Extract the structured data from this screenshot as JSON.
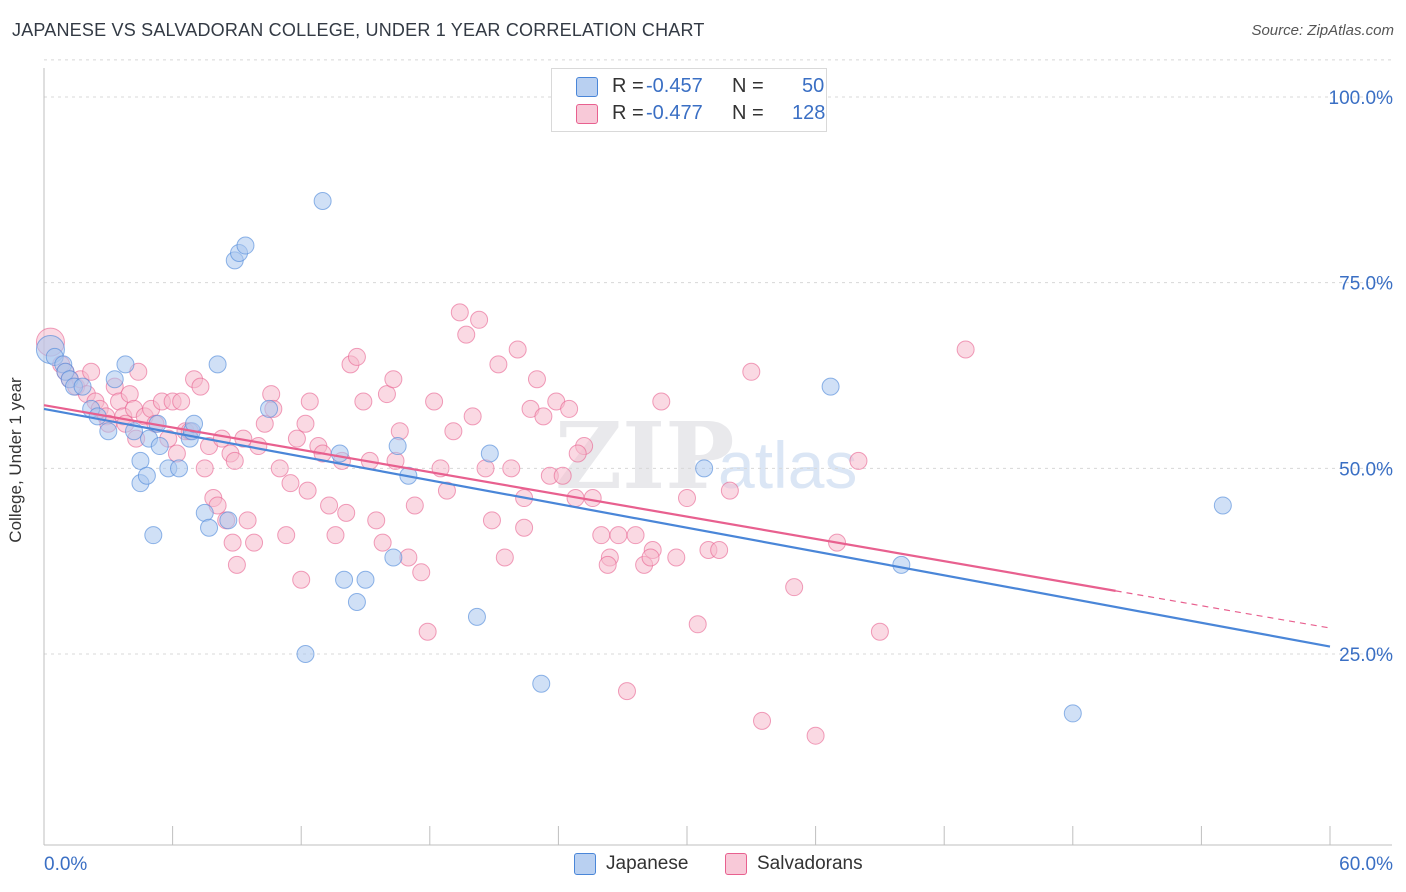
{
  "title": "JAPANESE VS SALVADORAN COLLEGE, UNDER 1 YEAR CORRELATION CHART",
  "source": "Source: ZipAtlas.com",
  "watermark": {
    "zip": "ZIP",
    "atlas": "atlas"
  },
  "colors": {
    "blue": "#4a86d8",
    "blue_fill": "#a9c6ef",
    "pink": "#e8608f",
    "pink_fill": "#f5b9cc",
    "tick_label": "#3a6fc4",
    "grid": "#d8d8d8"
  },
  "legend": {
    "rows": [
      {
        "r_label": "R =",
        "r_value": "-0.457",
        "n_label": "N =",
        "n_value": "50"
      },
      {
        "r_label": "R =",
        "r_value": "-0.477",
        "n_label": "N =",
        "n_value": "128"
      }
    ]
  },
  "bottom_legend": {
    "japanese": "Japanese",
    "salvadorans": "Salvadorans"
  },
  "chart_data": {
    "type": "scatter",
    "title": "JAPANESE VS SALVADORAN COLLEGE, UNDER 1 YEAR CORRELATION CHART",
    "xlabel": "",
    "ylabel": "College, Under 1 year",
    "xlim": [
      0,
      60
    ],
    "ylim": [
      0,
      105
    ],
    "x_tick_labels": {
      "left": "0.0%",
      "right": "60.0%"
    },
    "y_ticks": [
      100,
      75,
      50,
      25
    ],
    "y_tick_labels": [
      "100.0%",
      "75.0%",
      "50.0%",
      "25.0%"
    ],
    "grid": true,
    "series": [
      {
        "name": "Japanese",
        "trend": {
          "x0": 0,
          "y0": 58.0,
          "x1": 60,
          "y1": 26.0
        },
        "points": [
          [
            0.3,
            66
          ],
          [
            0.5,
            65
          ],
          [
            0.9,
            64
          ],
          [
            1.0,
            63
          ],
          [
            1.2,
            62
          ],
          [
            1.4,
            61
          ],
          [
            1.8,
            61
          ],
          [
            2.2,
            58
          ],
          [
            2.5,
            57
          ],
          [
            3.0,
            55
          ],
          [
            3.3,
            62
          ],
          [
            3.8,
            64
          ],
          [
            4.2,
            55
          ],
          [
            4.5,
            51
          ],
          [
            4.5,
            48
          ],
          [
            4.8,
            49
          ],
          [
            4.9,
            54
          ],
          [
            5.1,
            41
          ],
          [
            5.3,
            56
          ],
          [
            5.4,
            53
          ],
          [
            5.8,
            50
          ],
          [
            6.3,
            50
          ],
          [
            6.8,
            54
          ],
          [
            6.9,
            55
          ],
          [
            7.0,
            56
          ],
          [
            7.5,
            44
          ],
          [
            7.7,
            42
          ],
          [
            8.1,
            64
          ],
          [
            8.6,
            43
          ],
          [
            8.9,
            78
          ],
          [
            9.1,
            79
          ],
          [
            9.4,
            80
          ],
          [
            10.5,
            58
          ],
          [
            12.2,
            25
          ],
          [
            13.0,
            86
          ],
          [
            13.8,
            52
          ],
          [
            14.0,
            35
          ],
          [
            14.6,
            32
          ],
          [
            15.0,
            35
          ],
          [
            16.3,
            38
          ],
          [
            16.5,
            53
          ],
          [
            17.0,
            49
          ],
          [
            20.2,
            30
          ],
          [
            20.8,
            52
          ],
          [
            23.2,
            21
          ],
          [
            30.8,
            50
          ],
          [
            36.7,
            61
          ],
          [
            40.0,
            37
          ],
          [
            48.0,
            17
          ],
          [
            55.0,
            45
          ]
        ]
      },
      {
        "name": "Salvadorans",
        "trend": {
          "x0": 0,
          "y0": 58.5,
          "x1": 50,
          "y1": 33.5,
          "dash_x1": 60,
          "dash_y1": 28.5
        },
        "points": [
          [
            0.3,
            67
          ],
          [
            0.8,
            64
          ],
          [
            1.0,
            63
          ],
          [
            1.2,
            62
          ],
          [
            1.5,
            61
          ],
          [
            1.7,
            62
          ],
          [
            2.0,
            60
          ],
          [
            2.2,
            63
          ],
          [
            2.4,
            59
          ],
          [
            2.6,
            58
          ],
          [
            2.9,
            57
          ],
          [
            3.0,
            56
          ],
          [
            3.3,
            61
          ],
          [
            3.5,
            59
          ],
          [
            3.7,
            57
          ],
          [
            3.8,
            56
          ],
          [
            4.0,
            60
          ],
          [
            4.2,
            58
          ],
          [
            4.3,
            54
          ],
          [
            4.4,
            63
          ],
          [
            4.7,
            57
          ],
          [
            5.0,
            58
          ],
          [
            5.2,
            56
          ],
          [
            5.5,
            59
          ],
          [
            5.8,
            54
          ],
          [
            6.0,
            59
          ],
          [
            6.2,
            52
          ],
          [
            6.4,
            59
          ],
          [
            6.6,
            55
          ],
          [
            6.8,
            55
          ],
          [
            7.0,
            62
          ],
          [
            7.3,
            61
          ],
          [
            7.5,
            50
          ],
          [
            7.7,
            53
          ],
          [
            7.9,
            46
          ],
          [
            8.1,
            45
          ],
          [
            8.3,
            54
          ],
          [
            8.5,
            43
          ],
          [
            8.7,
            52
          ],
          [
            8.9,
            51
          ],
          [
            9.0,
            37
          ],
          [
            9.3,
            54
          ],
          [
            9.5,
            43
          ],
          [
            9.8,
            40
          ],
          [
            10.0,
            53
          ],
          [
            10.3,
            56
          ],
          [
            10.6,
            60
          ],
          [
            10.7,
            58
          ],
          [
            11.0,
            50
          ],
          [
            11.3,
            41
          ],
          [
            11.5,
            48
          ],
          [
            11.8,
            54
          ],
          [
            12.0,
            35
          ],
          [
            12.2,
            56
          ],
          [
            12.4,
            59
          ],
          [
            12.8,
            53
          ],
          [
            13.0,
            52
          ],
          [
            13.3,
            45
          ],
          [
            13.6,
            41
          ],
          [
            13.9,
            51
          ],
          [
            14.1,
            44
          ],
          [
            14.3,
            64
          ],
          [
            14.6,
            65
          ],
          [
            14.9,
            59
          ],
          [
            15.2,
            51
          ],
          [
            15.5,
            43
          ],
          [
            15.8,
            40
          ],
          [
            16.0,
            60
          ],
          [
            16.3,
            62
          ],
          [
            16.6,
            55
          ],
          [
            17.0,
            38
          ],
          [
            17.3,
            45
          ],
          [
            17.6,
            36
          ],
          [
            17.9,
            28
          ],
          [
            18.2,
            59
          ],
          [
            18.5,
            50
          ],
          [
            18.8,
            47
          ],
          [
            19.1,
            55
          ],
          [
            19.4,
            71
          ],
          [
            19.7,
            68
          ],
          [
            20.0,
            57
          ],
          [
            20.3,
            70
          ],
          [
            20.6,
            50
          ],
          [
            20.9,
            43
          ],
          [
            21.2,
            64
          ],
          [
            21.5,
            38
          ],
          [
            21.8,
            50
          ],
          [
            22.1,
            66
          ],
          [
            22.4,
            42
          ],
          [
            22.7,
            58
          ],
          [
            23.0,
            62
          ],
          [
            23.3,
            57
          ],
          [
            23.6,
            49
          ],
          [
            23.9,
            59
          ],
          [
            24.2,
            49
          ],
          [
            24.5,
            58
          ],
          [
            24.8,
            46
          ],
          [
            25.2,
            53
          ],
          [
            25.6,
            46
          ],
          [
            26.0,
            41
          ],
          [
            26.4,
            38
          ],
          [
            26.8,
            41
          ],
          [
            27.2,
            20
          ],
          [
            27.6,
            41
          ],
          [
            28.0,
            37
          ],
          [
            28.4,
            39
          ],
          [
            28.8,
            59
          ],
          [
            29.5,
            38
          ],
          [
            30.0,
            46
          ],
          [
            30.5,
            29
          ],
          [
            31.0,
            39
          ],
          [
            32.0,
            47
          ],
          [
            33.0,
            63
          ],
          [
            33.5,
            16
          ],
          [
            35.0,
            34
          ],
          [
            36.0,
            14
          ],
          [
            37.0,
            40
          ],
          [
            38.0,
            51
          ],
          [
            39.0,
            28
          ],
          [
            43.0,
            66
          ],
          [
            8.8,
            40
          ],
          [
            12.3,
            47
          ],
          [
            16.4,
            51
          ],
          [
            22.4,
            46
          ],
          [
            24.9,
            52
          ],
          [
            26.3,
            37
          ],
          [
            28.3,
            38
          ],
          [
            31.5,
            39
          ]
        ]
      }
    ]
  }
}
